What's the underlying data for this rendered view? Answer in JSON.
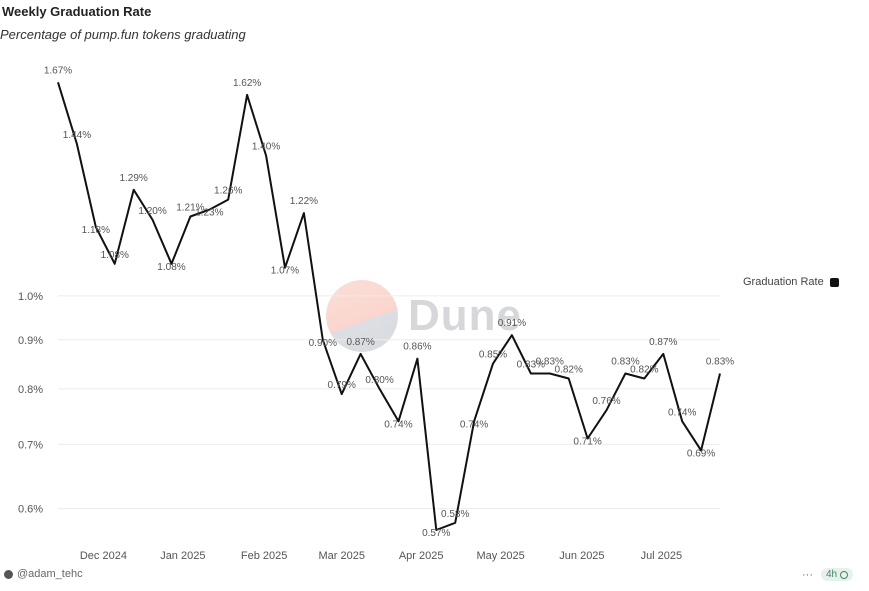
{
  "title": "Weekly Graduation Rate",
  "subtitle": "Percentage of pump.fun tokens graduating",
  "legend": {
    "label": "Graduation Rate",
    "color": "#111111"
  },
  "watermark": "Dune",
  "footer": {
    "author": "@adam_tehc",
    "more": "···",
    "age": "4h"
  },
  "chart_data": {
    "type": "line",
    "title": "Weekly Graduation Rate",
    "subtitle": "Percentage of pump.fun tokens graduating",
    "ylim": [
      0.57,
      1.72
    ],
    "yscale": "log",
    "grid": true,
    "legend_position": "right",
    "y_ticks": [
      {
        "value": 1.0,
        "label": "1.0%"
      },
      {
        "value": 0.9,
        "label": "0.9%"
      },
      {
        "value": 0.8,
        "label": "0.8%"
      },
      {
        "value": 0.7,
        "label": "0.7%"
      },
      {
        "value": 0.6,
        "label": "0.6%"
      }
    ],
    "x_ticks": [
      {
        "index": 2.4,
        "label": "Dec 2024"
      },
      {
        "index": 6.6,
        "label": "Jan 2025"
      },
      {
        "index": 10.9,
        "label": "Feb 2025"
      },
      {
        "index": 15.0,
        "label": "Mar 2025"
      },
      {
        "index": 19.2,
        "label": "Apr 2025"
      },
      {
        "index": 23.4,
        "label": "May 2025"
      },
      {
        "index": 27.7,
        "label": "Jun 2025"
      },
      {
        "index": 31.9,
        "label": "Jul 2025"
      }
    ],
    "series": [
      {
        "name": "Graduation Rate",
        "color": "#111111",
        "values": [
          1.67,
          1.44,
          1.18,
          1.08,
          1.29,
          1.2,
          1.08,
          1.21,
          1.23,
          1.26,
          1.62,
          1.4,
          1.07,
          1.22,
          0.9,
          0.79,
          0.87,
          0.8,
          0.74,
          0.86,
          0.57,
          0.58,
          0.74,
          0.85,
          0.91,
          0.83,
          0.83,
          0.82,
          0.71,
          0.76,
          0.83,
          0.82,
          0.87,
          0.74,
          0.69,
          0.83
        ],
        "labels": [
          "1.67%",
          "1.44%",
          "1.18%",
          "1.08%",
          "1.29%",
          "1.20%",
          "1.08%",
          "1.21%",
          "1.23%",
          "1.26%",
          "1.62%",
          "1.40%",
          "1.07%",
          "1.22%",
          "0.90%",
          "0.79%",
          "0.87%",
          "0.80%",
          "0.74%",
          "0.86%",
          "0.57%",
          "0.58%",
          "0.74%",
          "0.85%",
          "0.91%",
          "0.83%",
          "0.83%",
          "0.82%",
          "0.71%",
          "0.76%",
          "0.83%",
          "0.82%",
          "0.87%",
          "0.74%",
          "0.69%",
          "0.83%"
        ]
      }
    ]
  }
}
